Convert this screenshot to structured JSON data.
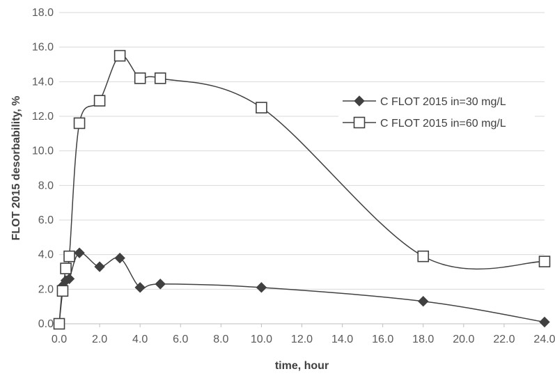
{
  "chart_data": {
    "type": "line",
    "xlabel": "time, hour",
    "ylabel": "FLOT 2015 desorbability, %",
    "xlim": [
      0,
      24
    ],
    "ylim": [
      0,
      18
    ],
    "x_ticks": [
      "0.0",
      "2.0",
      "4.0",
      "6.0",
      "8.0",
      "10.0",
      "12.0",
      "14.0",
      "16.0",
      "18.0",
      "20.0",
      "22.0",
      "24.0"
    ],
    "y_ticks": [
      "0.0",
      "2.0",
      "4.0",
      "6.0",
      "8.0",
      "10.0",
      "12.0",
      "14.0",
      "16.0",
      "18.0"
    ],
    "grid": "horizontal",
    "legend_position": "right",
    "smoothed": true,
    "series": [
      {
        "name": "C FLOT 2015 in=30 mg/L",
        "marker": "filled-diamond",
        "color": "#404040",
        "x": [
          0,
          0.17,
          0.33,
          0.5,
          1,
          2,
          3,
          4,
          5,
          10,
          18,
          24
        ],
        "y": [
          0,
          2.2,
          2.5,
          2.6,
          4.1,
          3.3,
          3.8,
          2.1,
          2.3,
          2.1,
          1.3,
          0.1
        ]
      },
      {
        "name": "C FLOT 2015 in=60 mg/L",
        "marker": "open-square",
        "color": "#404040",
        "x": [
          0,
          0.17,
          0.33,
          0.5,
          1,
          2,
          3,
          4,
          5,
          10,
          18,
          24
        ],
        "y": [
          0,
          1.9,
          3.2,
          3.9,
          11.6,
          12.9,
          15.5,
          14.2,
          14.2,
          12.5,
          3.9,
          3.6
        ]
      }
    ]
  }
}
